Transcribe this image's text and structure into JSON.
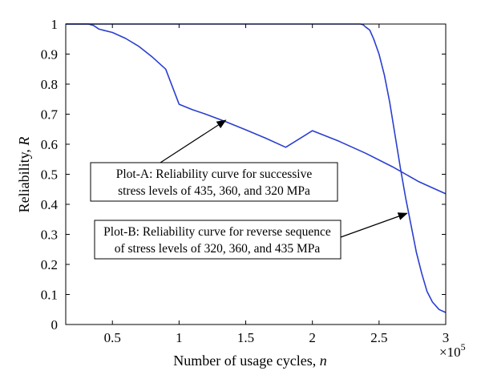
{
  "chart_data": {
    "type": "line",
    "xlabel": "Number of usage cycles, ",
    "xlabel_var": "n",
    "ylabel": "Reliability, ",
    "ylabel_var": "R",
    "x_multiplier": "×10",
    "x_multiplier_exp": "5",
    "xlim": [
      0.15,
      3.0
    ],
    "ylim": [
      0,
      1
    ],
    "x_ticks": [
      0.5,
      1,
      1.5,
      2,
      2.5,
      3
    ],
    "x_tick_labels": [
      "0.5",
      "1",
      "1.5",
      "2",
      "2.5",
      "3"
    ],
    "y_ticks": [
      0,
      0.1,
      0.2,
      0.3,
      0.4,
      0.5,
      0.6,
      0.7,
      0.8,
      0.9,
      1
    ],
    "y_tick_labels": [
      "0",
      "0.1",
      "0.2",
      "0.3",
      "0.4",
      "0.5",
      "0.6",
      "0.7",
      "0.8",
      "0.9",
      "1"
    ],
    "grid": false,
    "line_color": "#2a3fcf",
    "series": [
      {
        "x": [
          0.15,
          0.32,
          0.36,
          0.4,
          0.5,
          0.6,
          0.7,
          0.8,
          0.9,
          1.0,
          1.1,
          1.2,
          1.35,
          1.5,
          1.65,
          1.8,
          2.0,
          2.2,
          2.4,
          2.6,
          2.8,
          3.0
        ],
        "values": [
          1.0,
          1.0,
          0.995,
          0.983,
          0.972,
          0.952,
          0.925,
          0.89,
          0.85,
          0.733,
          0.715,
          0.7,
          0.675,
          0.648,
          0.62,
          0.59,
          0.645,
          0.61,
          0.57,
          0.525,
          0.475,
          0.435
        ]
      },
      {
        "x": [
          0.15,
          2.36,
          2.38,
          2.4,
          2.43,
          2.46,
          2.5,
          2.54,
          2.58,
          2.62,
          2.66,
          2.7,
          2.74,
          2.78,
          2.82,
          2.86,
          2.9,
          2.95,
          3.0
        ],
        "values": [
          1.0,
          1.0,
          0.998,
          0.99,
          0.98,
          0.95,
          0.9,
          0.83,
          0.74,
          0.63,
          0.52,
          0.42,
          0.33,
          0.24,
          0.17,
          0.11,
          0.075,
          0.05,
          0.04
        ]
      }
    ],
    "annotations": [
      {
        "lines": [
          "Plot-A: Reliability curve for successive",
          "stress levels of 435, 360, and 320 MPa"
        ],
        "arrow_to": [
          1.35,
          0.68
        ]
      },
      {
        "lines": [
          "Plot-B: Reliability curve for reverse sequence",
          "of stress levels of 320, 360, and 435 MPa"
        ],
        "arrow_to": [
          2.71,
          0.37
        ]
      }
    ]
  }
}
